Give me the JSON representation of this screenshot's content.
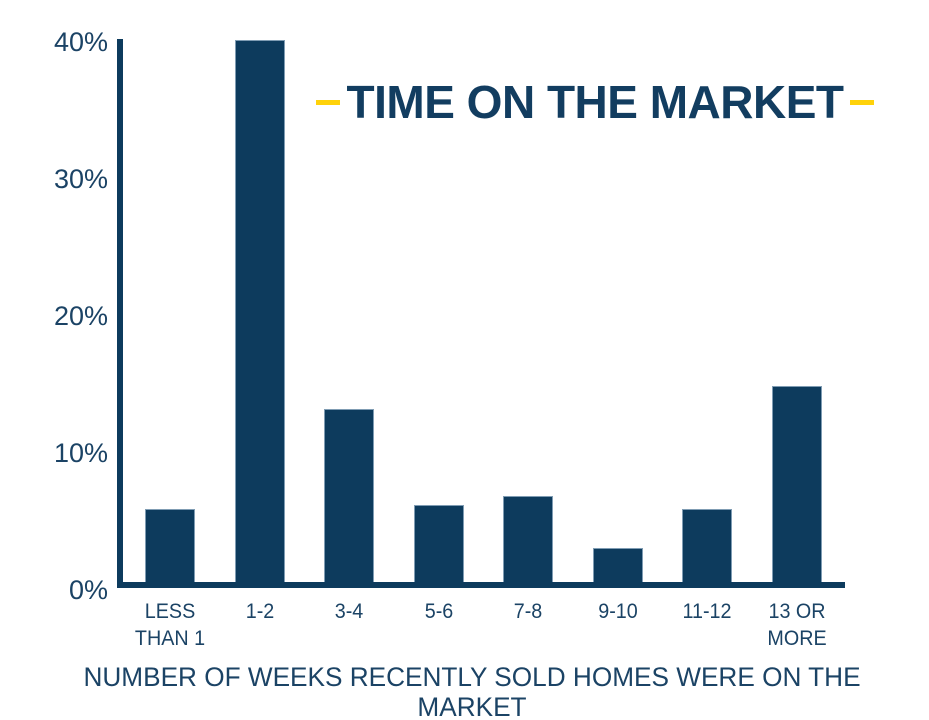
{
  "title": {
    "text": "TIME ON THE MARKET",
    "dash_color": "#FFD20A"
  },
  "caption": "NUMBER OF WEEKS RECENTLY SOLD HOMES WERE ON THE MARKET",
  "colors": {
    "background": "#FFFFFF",
    "navy_text": "#1B4365",
    "navy_title": "#123D60",
    "bar_fill": "#0D3B5D",
    "bar_edge": "#7F9CB3",
    "axis_line": "#0D3B5D",
    "accent_yellow": "#FFD20A"
  },
  "chart_data": {
    "type": "bar",
    "title": "TIME ON THE MARKET",
    "xlabel": "NUMBER OF WEEKS RECENTLY SOLD HOMES WERE ON THE MARKET",
    "ylabel": "",
    "categories": [
      "LESS\nTHAN 1",
      "1-2",
      "3-4",
      "5-6",
      "7-8",
      "9-10",
      "11-12",
      "13 OR\nMORE"
    ],
    "values": [
      5.3,
      39.5,
      12.6,
      5.6,
      6.3,
      2.5,
      5.3,
      14.3
    ],
    "ylim": [
      0,
      40
    ],
    "yticks": [
      0,
      10,
      20,
      30,
      40
    ],
    "ytick_labels": [
      "0%",
      "10%",
      "20%",
      "30%",
      "40%"
    ],
    "grid": false,
    "legend": false,
    "bar_color": "#0D3B5D"
  }
}
